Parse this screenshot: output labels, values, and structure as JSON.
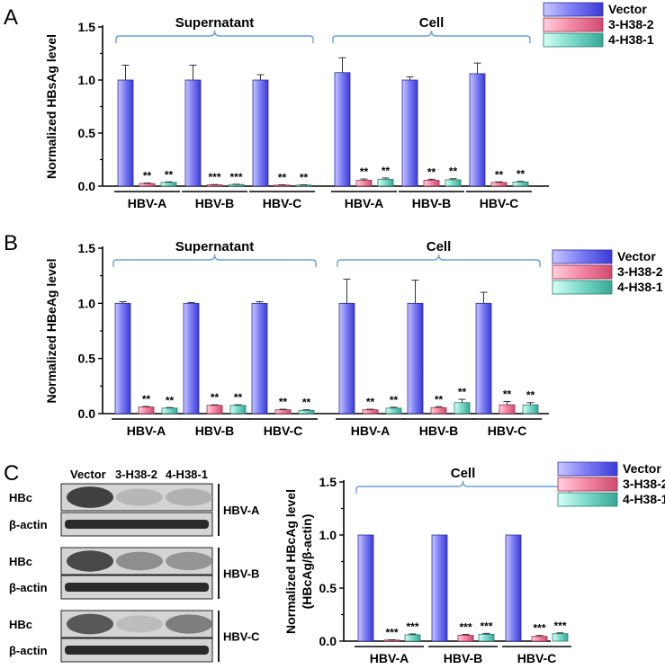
{
  "legend": [
    "Vector",
    "3-H38-2",
    "4-H38-1"
  ],
  "colors": {
    "vector": "#7f7ff2",
    "h382": "#f48ca6",
    "h381": "#7ed6c8",
    "bracket": "#6a9fd6"
  },
  "panelA": {
    "letter": "A",
    "chart_data": {
      "type": "bar",
      "ylabel": "Normalized HBsAg level",
      "ylim": [
        0,
        1.5
      ],
      "yticks": [
        "0.0",
        "0.5",
        "1.0",
        "1.5"
      ],
      "groups": [
        {
          "label": "Supernatant",
          "categories": [
            "HBV-A",
            "HBV-B",
            "HBV-C"
          ]
        },
        {
          "label": "Cell",
          "categories": [
            "HBV-A",
            "HBV-B",
            "HBV-C"
          ]
        }
      ],
      "series": [
        {
          "name": "Vector",
          "values": [
            1.0,
            1.0,
            1.0,
            1.07,
            1.0,
            1.06
          ],
          "errors": [
            0.14,
            0.14,
            0.05,
            0.14,
            0.03,
            0.1
          ],
          "sig": [
            "",
            "",
            "",
            "",
            "",
            ""
          ]
        },
        {
          "name": "3-H38-2",
          "values": [
            0.025,
            0.012,
            0.01,
            0.055,
            0.055,
            0.035
          ],
          "errors": [
            0.005,
            0.003,
            0.003,
            0.012,
            0.01,
            0.005
          ],
          "sig": [
            "**",
            "***",
            "**",
            "**",
            "**",
            "**"
          ]
        },
        {
          "name": "4-H38-1",
          "values": [
            0.035,
            0.015,
            0.01,
            0.065,
            0.06,
            0.04
          ],
          "errors": [
            0.005,
            0.003,
            0.003,
            0.012,
            0.01,
            0.005
          ],
          "sig": [
            "**",
            "***",
            "**",
            "**",
            "**",
            "**"
          ]
        }
      ]
    }
  },
  "panelB": {
    "letter": "B",
    "chart_data": {
      "type": "bar",
      "ylabel": "Normalized HBeAg level",
      "ylim": [
        0,
        1.5
      ],
      "yticks": [
        "0.0",
        "0.5",
        "1.0",
        "1.5"
      ],
      "groups": [
        {
          "label": "Supernatant",
          "categories": [
            "HBV-A",
            "HBV-B",
            "HBV-C"
          ]
        },
        {
          "label": "Cell",
          "categories": [
            "HBV-A",
            "HBV-B",
            "HBV-C"
          ]
        }
      ],
      "series": [
        {
          "name": "Vector",
          "values": [
            1.0,
            1.0,
            1.0,
            1.0,
            1.0,
            1.0
          ],
          "errors": [
            0.015,
            0.008,
            0.015,
            0.22,
            0.21,
            0.1
          ],
          "sig": [
            "",
            "",
            "",
            "",
            "",
            ""
          ]
        },
        {
          "name": "3-H38-2",
          "values": [
            0.06,
            0.075,
            0.035,
            0.035,
            0.055,
            0.08
          ],
          "errors": [
            0.005,
            0.005,
            0.005,
            0.005,
            0.008,
            0.03
          ],
          "sig": [
            "**",
            "**",
            "**",
            "**",
            "**",
            "**"
          ]
        },
        {
          "name": "4-H38-1",
          "values": [
            0.05,
            0.075,
            0.03,
            0.05,
            0.1,
            0.08
          ],
          "errors": [
            0.005,
            0.005,
            0.005,
            0.008,
            0.03,
            0.02
          ],
          "sig": [
            "**",
            "**",
            "**",
            "**",
            "**",
            "**"
          ]
        }
      ]
    }
  },
  "panelC": {
    "letter": "C",
    "blot": {
      "lanes": [
        "Vector",
        "3-H38-2",
        "4-H38-1"
      ],
      "rows": [
        "HBc",
        "β-actin"
      ],
      "groups": [
        "HBV-A",
        "HBV-B",
        "HBV-C"
      ]
    },
    "chart_data": {
      "type": "bar",
      "ylabel": "Normalized HBcAg level",
      "ylabel2": "(HBcAg/β-actin)",
      "ylim": [
        0,
        1.5
      ],
      "yticks": [
        "0.0",
        "0.5",
        "1.0",
        "1.5"
      ],
      "groups": [
        {
          "label": "Cell",
          "categories": [
            "HBV-A",
            "HBV-B",
            "HBV-C"
          ]
        }
      ],
      "series": [
        {
          "name": "Vector",
          "values": [
            1.0,
            1.0,
            1.0
          ],
          "errors": [
            0,
            0,
            0
          ],
          "sig": [
            "",
            "",
            ""
          ]
        },
        {
          "name": "3-H38-2",
          "values": [
            0.01,
            0.055,
            0.045
          ],
          "errors": [
            0.003,
            0.008,
            0.008
          ],
          "sig": [
            "***",
            "***",
            "***"
          ]
        },
        {
          "name": "4-H38-1",
          "values": [
            0.06,
            0.065,
            0.07
          ],
          "errors": [
            0.008,
            0.008,
            0.008
          ],
          "sig": [
            "***",
            "***",
            "***"
          ]
        }
      ]
    }
  }
}
